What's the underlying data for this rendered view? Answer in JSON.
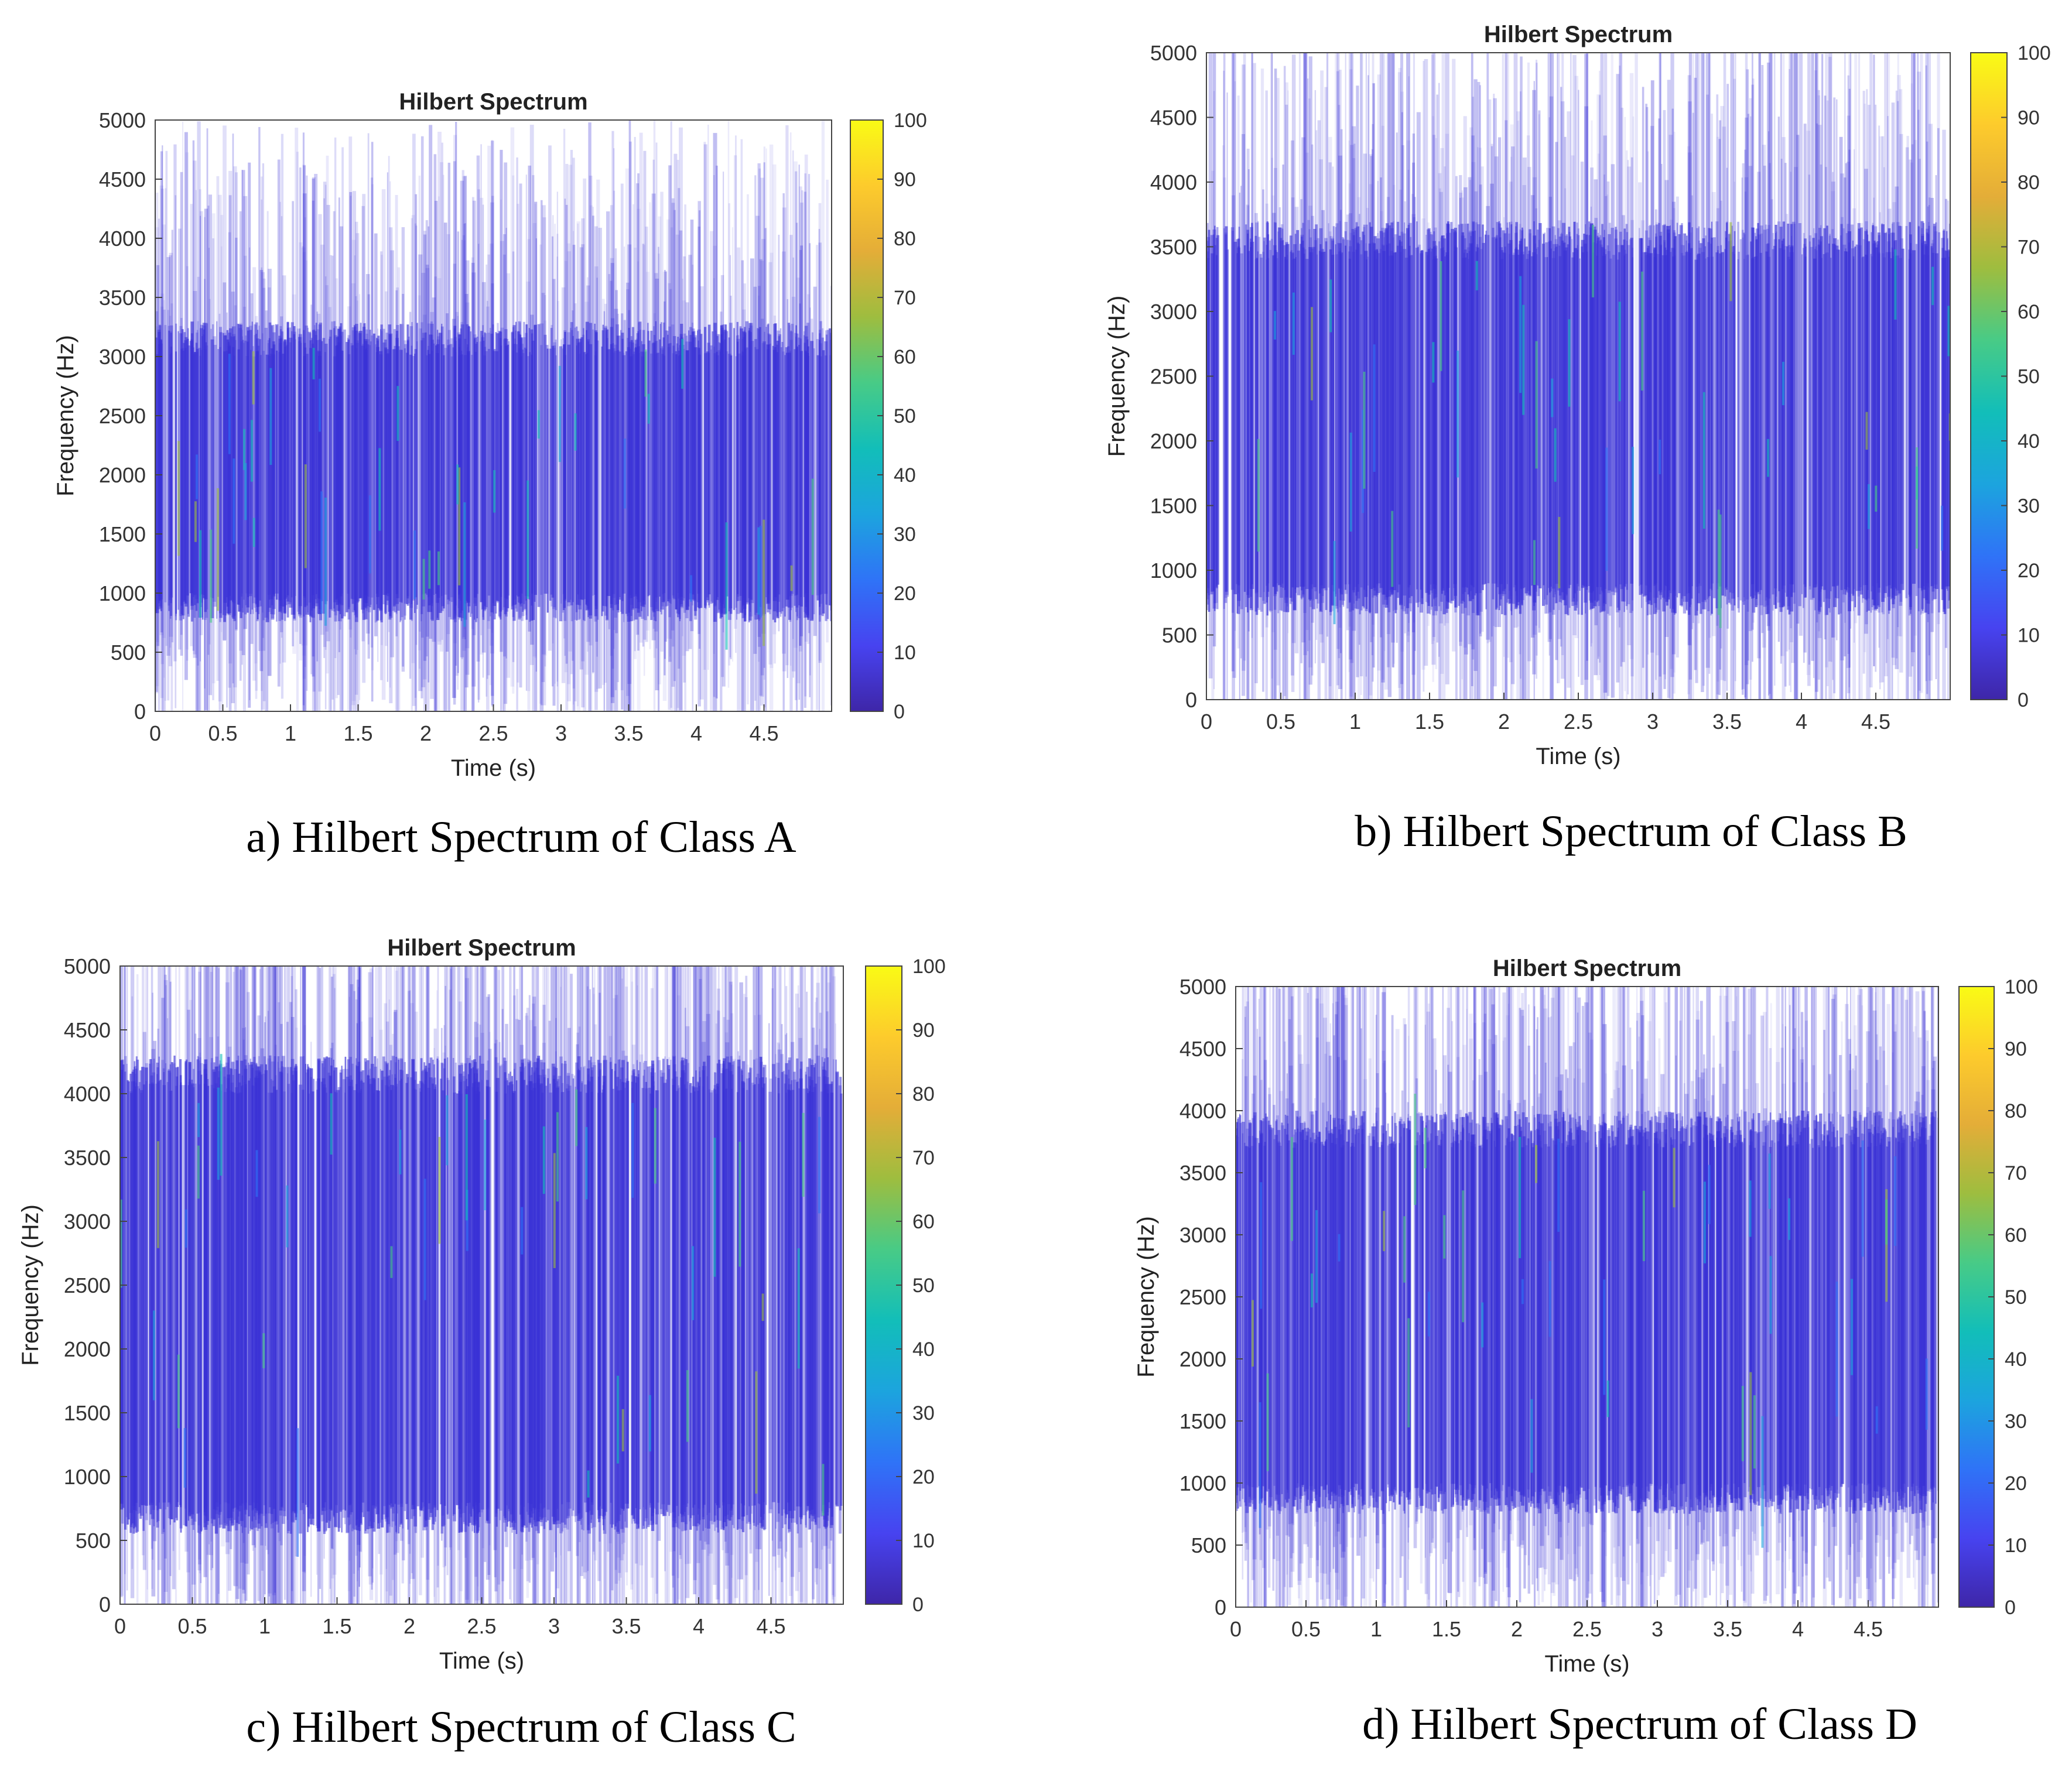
{
  "chart_data": [
    {
      "id": "A",
      "type": "heatmap",
      "title": "Hilbert Spectrum",
      "xlabel": "Time (s)",
      "ylabel": "Frequency (Hz)",
      "xlim": [
        0,
        5
      ],
      "ylim": [
        0,
        5000
      ],
      "xticks": [
        "0",
        "0.5",
        "1",
        "1.5",
        "2",
        "2.5",
        "3",
        "3.5",
        "4",
        "4.5"
      ],
      "yticks": [
        "0",
        "500",
        "1000",
        "1500",
        "2000",
        "2500",
        "3000",
        "3500",
        "4000",
        "4500",
        "5000"
      ],
      "colorbar": {
        "range": [
          0,
          100
        ],
        "ticks": [
          "0",
          "10",
          "20",
          "30",
          "40",
          "50",
          "60",
          "70",
          "80",
          "90",
          "100"
        ]
      },
      "dense_band_hz": [
        1000,
        3000
      ],
      "caption": "a) Hilbert Spectrum of Class A"
    },
    {
      "id": "B",
      "type": "heatmap",
      "title": "Hilbert Spectrum",
      "xlabel": "Time (s)",
      "ylabel": "Frequency (Hz)",
      "xlim": [
        0,
        5
      ],
      "ylim": [
        0,
        5000
      ],
      "xticks": [
        "0",
        "0.5",
        "1",
        "1.5",
        "2",
        "2.5",
        "3",
        "3.5",
        "4",
        "4.5"
      ],
      "yticks": [
        "0",
        "500",
        "1000",
        "1500",
        "2000",
        "2500",
        "3000",
        "3500",
        "4000",
        "4500",
        "5000"
      ],
      "colorbar": {
        "range": [
          0,
          100
        ],
        "ticks": [
          "0",
          "10",
          "20",
          "30",
          "40",
          "50",
          "60",
          "70",
          "80",
          "90",
          "100"
        ]
      },
      "dense_band_hz": [
        900,
        3400
      ],
      "caption": "b) Hilbert Spectrum of Class B"
    },
    {
      "id": "C",
      "type": "heatmap",
      "title": "Hilbert Spectrum",
      "xlabel": "Time (s)",
      "ylabel": "Frequency (Hz)",
      "xlim": [
        0,
        5
      ],
      "ylim": [
        0,
        5000
      ],
      "xticks": [
        "0",
        "0.5",
        "1",
        "1.5",
        "2",
        "2.5",
        "3",
        "3.5",
        "4",
        "4.5"
      ],
      "yticks": [
        "0",
        "500",
        "1000",
        "1500",
        "2000",
        "2500",
        "3000",
        "3500",
        "4000",
        "4500",
        "5000"
      ],
      "colorbar": {
        "range": [
          0,
          100
        ],
        "ticks": [
          "0",
          "10",
          "20",
          "30",
          "40",
          "50",
          "60",
          "70",
          "80",
          "90",
          "100"
        ]
      },
      "dense_band_hz": [
        800,
        4000
      ],
      "caption": "c) Hilbert Spectrum of Class C"
    },
    {
      "id": "D",
      "type": "heatmap",
      "title": "Hilbert Spectrum",
      "xlabel": "Time (s)",
      "ylabel": "Frequency (Hz)",
      "xlim": [
        0,
        5
      ],
      "ylim": [
        0,
        5000
      ],
      "xticks": [
        "0",
        "0.5",
        "1",
        "1.5",
        "2",
        "2.5",
        "3",
        "3.5",
        "4",
        "4.5"
      ],
      "yticks": [
        "0",
        "500",
        "1000",
        "1500",
        "2000",
        "2500",
        "3000",
        "3500",
        "4000",
        "4500",
        "5000"
      ],
      "colorbar": {
        "range": [
          0,
          100
        ],
        "ticks": [
          "0",
          "10",
          "20",
          "30",
          "40",
          "50",
          "60",
          "70",
          "80",
          "90",
          "100"
        ]
      },
      "dense_band_hz": [
        1000,
        3700
      ],
      "caption": "d) Hilbert Spectrum of Class D"
    }
  ],
  "colormap": [
    "#3e26a8",
    "#4743f0",
    "#2f73f7",
    "#1ca4de",
    "#12beb9",
    "#48cb86",
    "#9ebd3f",
    "#e4ad38",
    "#fdcb2c",
    "#f9fb15"
  ],
  "spectrum_color": "#3a32d6"
}
